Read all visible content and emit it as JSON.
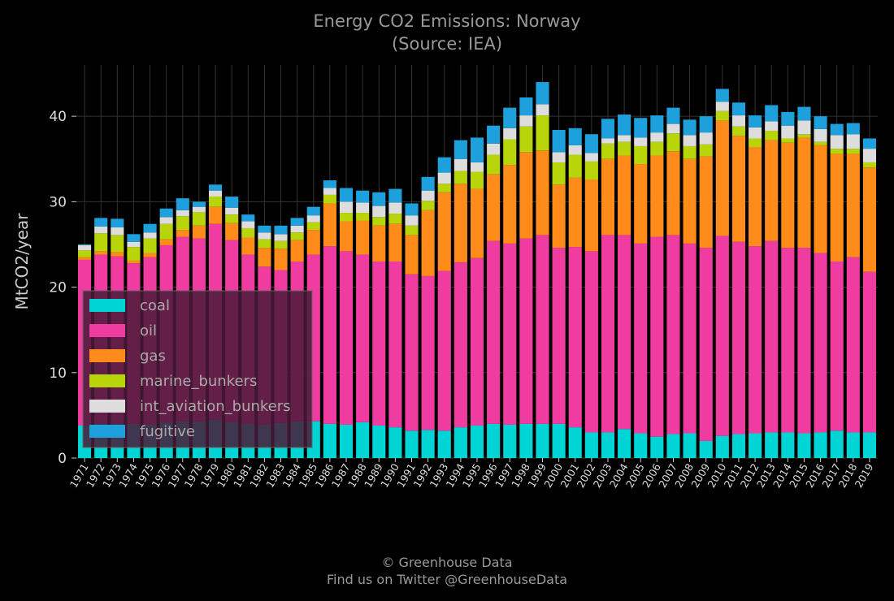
{
  "chart_data": {
    "type": "bar",
    "stacked": true,
    "title": "Energy CO2 Emissions: Norway",
    "subtitle": "(Source: IEA)",
    "xlabel": "",
    "ylabel": "MtCO2/year",
    "ylim": [
      0,
      46
    ],
    "yticks": [
      0,
      10,
      20,
      30,
      40
    ],
    "grid": true,
    "legend_position": "lower-left",
    "categories": [
      "1971",
      "1972",
      "1973",
      "1974",
      "1975",
      "1976",
      "1977",
      "1978",
      "1979",
      "1980",
      "1981",
      "1982",
      "1983",
      "1984",
      "1985",
      "1986",
      "1987",
      "1988",
      "1989",
      "1990",
      "1991",
      "1992",
      "1993",
      "1994",
      "1995",
      "1996",
      "1997",
      "1998",
      "1999",
      "2000",
      "2001",
      "2002",
      "2003",
      "2004",
      "2005",
      "2006",
      "2007",
      "2008",
      "2009",
      "2010",
      "2011",
      "2012",
      "2013",
      "2014",
      "2015",
      "2016",
      "2017",
      "2018",
      "2019"
    ],
    "series": [
      {
        "name": "coal",
        "color": "#00d4d4",
        "values": [
          3.8,
          4.0,
          4.0,
          4.0,
          3.9,
          4.2,
          4.3,
          4.3,
          4.5,
          4.2,
          4.0,
          3.9,
          4.1,
          4.3,
          4.3,
          4.0,
          3.9,
          4.2,
          3.8,
          3.6,
          3.2,
          3.3,
          3.2,
          3.6,
          3.8,
          4.0,
          3.9,
          4.0,
          4.0,
          4.0,
          3.6,
          3.0,
          3.0,
          3.4,
          2.9,
          2.5,
          2.8,
          2.9,
          2.0,
          2.6,
          2.8,
          2.9,
          3.0,
          3.0,
          2.9,
          3.0,
          3.2,
          3.0,
          3.0
        ]
      },
      {
        "name": "oil",
        "color": "#f03ca0",
        "values": [
          19.4,
          19.8,
          19.6,
          18.8,
          19.6,
          20.7,
          21.6,
          21.4,
          22.9,
          21.3,
          19.8,
          18.5,
          17.9,
          18.7,
          19.5,
          20.8,
          20.3,
          19.6,
          19.2,
          19.4,
          18.3,
          18.0,
          18.7,
          19.3,
          19.6,
          21.4,
          21.2,
          21.7,
          22.1,
          20.6,
          21.1,
          21.2,
          23.1,
          22.7,
          22.2,
          23.4,
          23.3,
          22.2,
          22.6,
          23.4,
          22.5,
          21.9,
          22.4,
          21.6,
          21.7,
          21.0,
          19.8,
          20.5,
          18.8
        ]
      },
      {
        "name": "gas",
        "color": "#ff8c1a",
        "values": [
          0.3,
          0.4,
          0.5,
          0.3,
          0.5,
          0.7,
          0.8,
          1.5,
          2.0,
          2.0,
          2.0,
          2.2,
          2.5,
          2.5,
          2.9,
          5.0,
          3.5,
          4.0,
          4.2,
          4.4,
          4.6,
          7.7,
          9.2,
          9.2,
          8.1,
          7.8,
          9.2,
          10.1,
          9.9,
          7.4,
          8.1,
          8.4,
          8.9,
          9.3,
          9.3,
          9.5,
          9.8,
          9.9,
          10.7,
          13.5,
          12.4,
          11.6,
          11.8,
          12.3,
          12.9,
          12.6,
          12.6,
          12.1,
          12.2
        ]
      },
      {
        "name": "marine_bunkers",
        "color": "#b8d40a",
        "values": [
          0.8,
          2.1,
          2.0,
          1.6,
          1.7,
          1.8,
          1.6,
          1.6,
          1.2,
          1.0,
          1.1,
          1.0,
          0.9,
          0.9,
          0.9,
          1.0,
          1.0,
          0.9,
          1.0,
          1.2,
          1.1,
          1.1,
          1.0,
          1.5,
          2.0,
          2.3,
          3.0,
          3.0,
          4.1,
          2.6,
          2.7,
          2.1,
          1.8,
          1.6,
          2.1,
          1.6,
          2.1,
          1.5,
          1.4,
          1.1,
          1.1,
          1.0,
          1.1,
          0.5,
          0.4,
          0.4,
          0.6,
          0.6,
          0.6
        ]
      },
      {
        "name": "int_aviation_bunkers",
        "color": "#dddddd",
        "values": [
          0.6,
          0.8,
          0.9,
          0.6,
          0.7,
          0.8,
          0.7,
          0.6,
          0.7,
          0.8,
          0.8,
          0.8,
          0.8,
          0.8,
          0.8,
          0.8,
          1.3,
          1.2,
          1.3,
          1.3,
          1.2,
          1.2,
          1.3,
          1.4,
          1.1,
          1.3,
          1.3,
          1.3,
          1.3,
          1.2,
          1.1,
          1.0,
          0.6,
          0.8,
          1.0,
          1.1,
          1.1,
          1.3,
          1.4,
          1.1,
          1.3,
          1.3,
          1.1,
          1.5,
          1.6,
          1.5,
          1.6,
          1.7,
          1.6
        ]
      },
      {
        "name": "fugitive",
        "color": "#1ea0dc",
        "values": [
          0.1,
          1.0,
          1.0,
          0.9,
          1.0,
          1.0,
          1.4,
          0.6,
          0.7,
          1.3,
          0.8,
          0.8,
          1.0,
          0.9,
          1.0,
          0.9,
          1.6,
          1.4,
          1.6,
          1.6,
          1.4,
          1.6,
          1.8,
          2.2,
          2.9,
          2.1,
          2.4,
          2.1,
          2.6,
          2.6,
          2.0,
          2.2,
          2.3,
          2.4,
          2.3,
          2.0,
          1.9,
          1.8,
          1.9,
          1.5,
          1.5,
          1.4,
          1.9,
          1.6,
          1.6,
          1.5,
          1.3,
          1.3,
          1.2
        ]
      }
    ]
  },
  "credit_line1": "© Greenhouse Data",
  "credit_line2": "Find us on Twitter @GreenhouseData"
}
